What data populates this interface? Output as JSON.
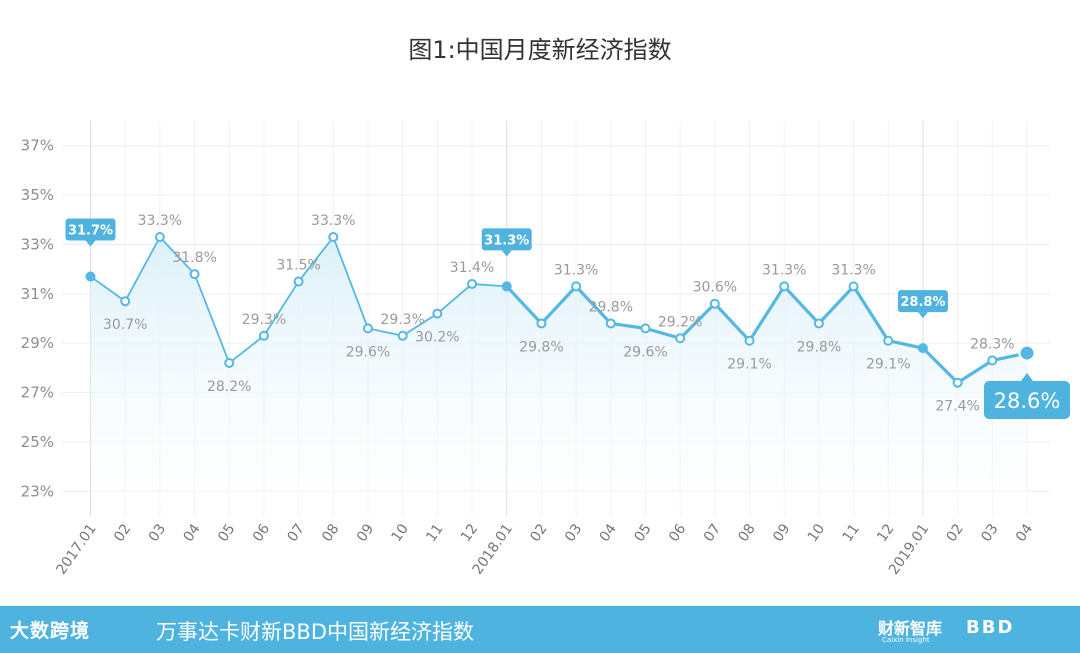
{
  "chart_data": {
    "type": "line",
    "title": "图1:中国月度新经济指数",
    "categories": [
      "2017.01",
      "02",
      "03",
      "04",
      "05",
      "06",
      "07",
      "08",
      "09",
      "10",
      "11",
      "12",
      "2018.01",
      "02",
      "03",
      "04",
      "05",
      "06",
      "07",
      "08",
      "09",
      "10",
      "11",
      "12",
      "2019.01",
      "02",
      "03",
      "04"
    ],
    "values": [
      31.7,
      30.7,
      33.3,
      31.8,
      28.2,
      29.3,
      31.5,
      33.3,
      29.6,
      29.3,
      30.2,
      31.4,
      31.3,
      29.8,
      31.3,
      29.8,
      29.6,
      29.2,
      30.6,
      29.1,
      31.3,
      29.8,
      31.3,
      29.1,
      28.8,
      27.4,
      28.3,
      28.6
    ],
    "labels": [
      "31.7%",
      "30.7%",
      "33.3%",
      "31.8%",
      "28.2%",
      "29.3%",
      "31.5%",
      "33.3%",
      "29.6%",
      "29.3%",
      "30.2%",
      "31.4%",
      "31.3%",
      "29.8%",
      "31.3%",
      "29.8%",
      "29.6%",
      "29.2%",
      "30.6%",
      "29.1%",
      "31.3%",
      "29.8%",
      "31.3%",
      "29.1%",
      "28.8%",
      "27.4%",
      "28.3%",
      "28.6%"
    ],
    "highlighted_indices": [
      0,
      12,
      24,
      27
    ],
    "ylim": [
      22,
      38
    ],
    "yticks": [
      23,
      25,
      27,
      29,
      31,
      33,
      35,
      37
    ],
    "ytick_labels": [
      "23%",
      "25%",
      "27%",
      "29%",
      "31%",
      "33%",
      "35%",
      "37%"
    ],
    "xlabel": "",
    "ylabel": "",
    "grid": true,
    "colors": {
      "line": "#55b8e4",
      "callout": "#4fb3e0",
      "grid": "#eeeeee",
      "area_top": "#d9eff9"
    }
  },
  "footer": {
    "logo_text": "大数跨境",
    "title": "万事达卡财新BBD中国新经济指数",
    "brand1": "财新智库",
    "brand1_sub": "Caixin Insight",
    "brand2": "BBD"
  }
}
